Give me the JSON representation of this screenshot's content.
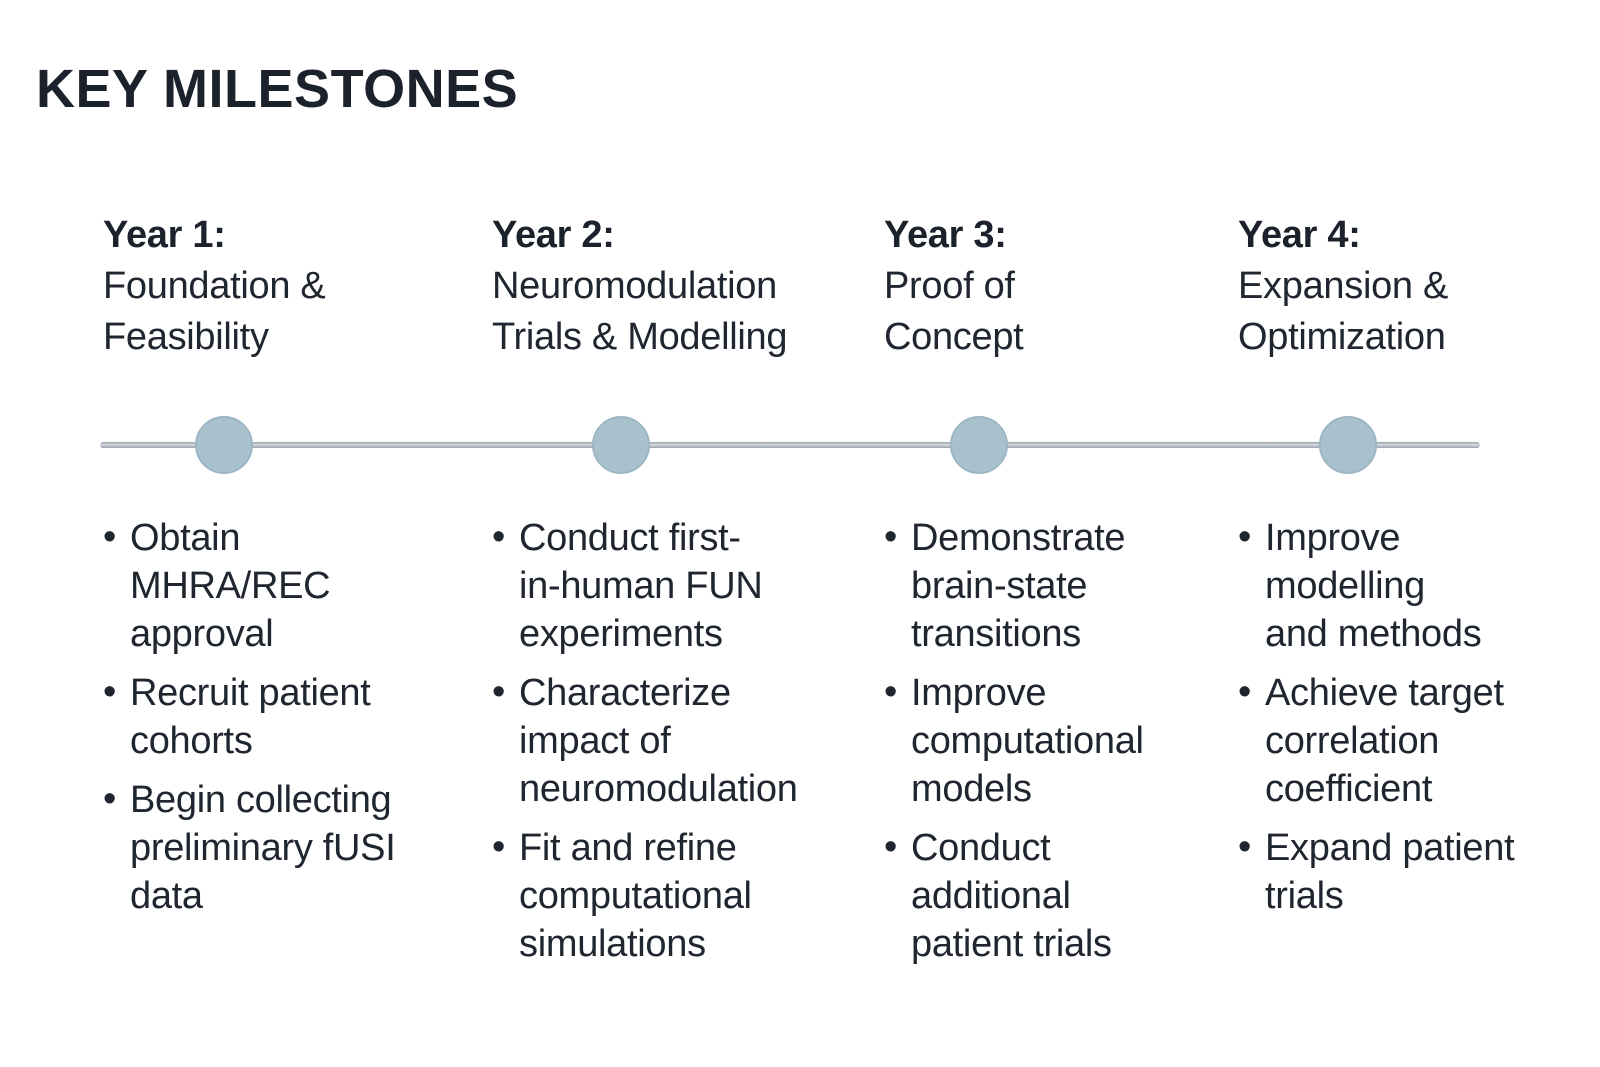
{
  "title": "KEY MILESTONES",
  "colors": {
    "background": "#ffffff",
    "text": "#20262f",
    "title_text": "#1c222b",
    "timeline_line": "#aab1b7",
    "timeline_dot": "#a8c1cd"
  },
  "timeline": {
    "dot_count": 4
  },
  "columns": [
    {
      "year_label": "Year 1:",
      "year_title": "Foundation &\nFeasibility",
      "bullets": [
        "Obtain\nMHRA/REC\napproval",
        "Recruit patient\ncohorts",
        "Begin collecting\npreliminary fUSI\ndata"
      ]
    },
    {
      "year_label": "Year 2:",
      "year_title": "Neuromodulation\nTrials & Modelling",
      "bullets": [
        "Conduct first-\nin-human FUN\nexperiments",
        "Characterize\nimpact of\nneuromodulation",
        "Fit and refine\ncomputational\nsimulations"
      ]
    },
    {
      "year_label": "Year 3:",
      "year_title": "Proof of\nConcept",
      "bullets": [
        "Demonstrate\nbrain-state\ntransitions",
        "Improve\ncomputational\nmodels",
        "Conduct\nadditional\npatient trials"
      ]
    },
    {
      "year_label": "Year 4:",
      "year_title": "Expansion &\nOptimization",
      "bullets": [
        "Improve\nmodelling\nand methods",
        "Achieve target\ncorrelation\ncoefficient",
        "Expand patient\ntrials"
      ]
    }
  ]
}
